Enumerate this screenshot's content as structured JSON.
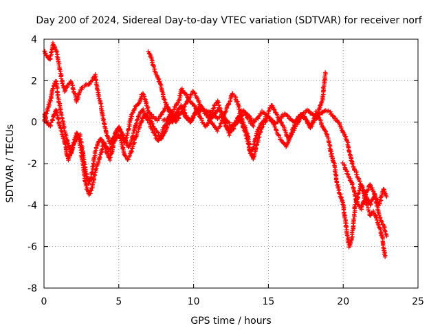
{
  "chart_data": {
    "type": "scatter",
    "title": "Day 200 of 2024, Sidereal Day-to-day VTEC variation (SDTVAR) for receiver norf",
    "xlabel": "GPS time / hours",
    "ylabel": "SDTVAR / TECUs",
    "xlim": [
      0,
      25
    ],
    "ylim": [
      -8,
      4
    ],
    "xticks": [
      0,
      5,
      10,
      15,
      20,
      25
    ],
    "yticks": [
      -8,
      -6,
      -4,
      -2,
      0,
      2,
      4
    ],
    "grid": true,
    "marker": "+",
    "series": [
      {
        "name": "trace-a",
        "color": "#ff0000",
        "x": [
          0.0,
          0.2,
          0.4,
          0.6,
          0.8,
          1.0,
          1.2,
          1.4,
          1.6,
          1.8,
          2.0,
          2.2,
          2.4,
          2.6,
          2.8,
          3.0,
          3.2,
          3.4,
          3.6,
          3.8,
          4.0,
          4.2,
          4.4,
          4.6,
          4.8,
          5.0,
          5.2,
          5.4,
          5.6,
          5.8,
          6.0,
          6.2,
          6.4,
          6.6,
          6.8,
          7.0,
          7.2,
          7.4,
          7.6,
          7.8,
          8.0,
          8.2,
          8.4,
          8.6,
          8.8,
          9.0,
          9.2,
          9.4,
          9.6,
          9.8,
          10.0,
          10.2,
          10.4,
          10.6,
          10.8,
          11.0,
          11.2,
          11.4,
          11.6,
          11.8,
          12.0,
          12.2,
          12.4,
          12.6,
          12.8,
          13.0,
          13.2,
          13.4,
          13.6,
          13.8,
          14.0
        ],
        "y": [
          3.5,
          3.2,
          3.0,
          3.8,
          3.5,
          2.8,
          2.0,
          1.5,
          1.8,
          2.0,
          1.5,
          1.0,
          1.5,
          1.7,
          1.8,
          1.8,
          2.0,
          2.3,
          1.5,
          0.8,
          0.0,
          -0.6,
          -1.0,
          -0.8,
          -0.5,
          -0.2,
          -0.6,
          -1.0,
          -0.5,
          0.2,
          0.6,
          0.8,
          1.0,
          1.4,
          1.0,
          0.5,
          0.3,
          0.2,
          0.1,
          0.3,
          0.5,
          0.8,
          0.4,
          0.2,
          0.0,
          0.2,
          0.5,
          0.8,
          1.0,
          1.3,
          1.5,
          1.2,
          0.9,
          0.6,
          0.5,
          0.3,
          0.2,
          0.4,
          0.6,
          0.5,
          0.2,
          -0.2,
          -0.4,
          -0.2,
          0.0,
          0.3,
          0.6,
          0.5,
          0.2,
          0.0,
          -0.2
        ]
      },
      {
        "name": "trace-b",
        "color": "#ff0000",
        "x": [
          0.0,
          0.2,
          0.4,
          0.6,
          0.8,
          1.0,
          1.2,
          1.4,
          1.6,
          1.8,
          2.0,
          2.2,
          2.4,
          2.6,
          2.8,
          3.0,
          3.2,
          3.4,
          3.6,
          3.8,
          4.0,
          4.2,
          4.4,
          4.6,
          4.8,
          5.0,
          5.2,
          5.4,
          5.6,
          5.8,
          6.0,
          6.2,
          6.4,
          6.6,
          6.8,
          7.0,
          7.2,
          7.4,
          7.6,
          7.8,
          8.0,
          8.2,
          8.4,
          8.6,
          8.8,
          9.0,
          9.2,
          9.4,
          9.6,
          9.8,
          10.0,
          10.2,
          10.4,
          10.6,
          10.8,
          11.0,
          11.2,
          11.4,
          11.6,
          11.8,
          12.0,
          12.2,
          12.4,
          12.6,
          12.8,
          13.0,
          13.2,
          13.4,
          13.6,
          13.8,
          14.0,
          14.2,
          14.4,
          14.6,
          14.8,
          15.0,
          15.2,
          15.4,
          15.6,
          15.8,
          16.0,
          16.2,
          16.4,
          16.6,
          16.8,
          17.0,
          17.2,
          17.4,
          17.6,
          17.8,
          18.0,
          18.2,
          18.4,
          18.6,
          18.8
        ],
        "y": [
          0.0,
          0.5,
          1.0,
          1.6,
          2.0,
          1.0,
          0.2,
          -0.5,
          -1.0,
          -1.5,
          -1.0,
          -0.5,
          -1.0,
          -2.0,
          -3.0,
          -3.5,
          -3.2,
          -2.5,
          -2.0,
          -1.5,
          -1.0,
          -1.2,
          -1.4,
          -1.0,
          -0.5,
          -0.3,
          -0.5,
          -0.8,
          -1.2,
          -1.0,
          -0.5,
          0.0,
          0.4,
          0.6,
          0.3,
          0.0,
          -0.3,
          -0.6,
          -0.9,
          -0.7,
          -0.3,
          0.0,
          0.3,
          0.5,
          0.8,
          1.0,
          1.6,
          1.4,
          1.2,
          1.0,
          0.8,
          0.6,
          0.5,
          0.6,
          0.4,
          0.2,
          0.0,
          -0.2,
          -0.4,
          -0.1,
          0.2,
          0.6,
          1.0,
          1.4,
          1.2,
          0.8,
          0.2,
          -0.2,
          -0.6,
          -1.5,
          -1.2,
          -0.6,
          -0.2,
          0.0,
          0.2,
          0.5,
          0.8,
          0.6,
          0.3,
          0.0,
          -0.2,
          -0.6,
          -0.8,
          -0.5,
          -0.2,
          0.0,
          0.2,
          0.3,
          0.0,
          -0.2,
          0.0,
          0.3,
          0.6,
          1.0,
          2.4
        ]
      },
      {
        "name": "trace-c",
        "color": "#ff0000",
        "x": [
          0.0,
          0.2,
          0.4,
          0.6,
          0.8,
          1.0,
          1.2,
          1.4,
          1.6,
          1.8,
          2.0,
          2.2,
          2.4,
          2.6,
          2.8,
          3.0,
          3.2,
          3.4,
          3.6,
          3.8,
          4.0,
          4.2,
          4.4,
          4.6,
          4.8,
          5.0,
          5.2,
          5.4,
          5.6,
          5.8,
          6.0,
          6.2,
          6.4,
          6.6,
          6.8,
          7.0,
          7.2,
          7.4,
          7.6,
          7.8,
          8.0,
          8.2,
          8.4,
          8.6,
          8.8,
          9.0,
          9.2,
          9.4,
          9.6,
          9.8,
          10.0,
          10.2,
          10.4,
          10.6,
          10.8,
          11.0,
          11.2,
          11.4,
          11.6,
          11.8,
          12.0,
          12.2,
          12.4,
          12.6,
          12.8,
          13.0,
          13.2,
          13.4,
          13.6,
          13.8,
          14.0,
          14.2,
          14.4,
          14.6,
          14.8,
          15.0,
          15.2,
          15.4,
          15.6,
          15.8,
          16.0,
          16.2,
          16.4,
          16.6,
          16.8,
          17.0,
          17.2,
          17.4,
          17.6,
          17.8,
          18.0,
          18.2,
          18.4,
          18.6,
          18.8,
          19.0,
          19.2,
          19.4,
          19.6,
          19.8,
          20.0,
          20.2,
          20.4,
          20.6,
          20.8,
          21.0,
          21.2,
          21.4,
          21.6,
          21.8,
          22.0,
          22.2,
          22.4,
          22.6,
          22.8
        ],
        "y": [
          0.5,
          0.0,
          -0.2,
          0.2,
          0.6,
          0.0,
          -0.5,
          -1.0,
          -1.8,
          -1.5,
          -1.0,
          -0.8,
          -0.6,
          -1.5,
          -2.5,
          -3.0,
          -2.5,
          -1.5,
          -1.0,
          -0.8,
          -1.0,
          -1.5,
          -1.8,
          -1.2,
          -0.8,
          -0.6,
          -1.0,
          -1.6,
          -1.8,
          -1.5,
          -1.0,
          -0.6,
          -0.2,
          0.2,
          0.4,
          0.2,
          0.0,
          -0.3,
          -0.5,
          -0.8,
          -0.6,
          -0.3,
          0.0,
          0.2,
          0.4,
          0.6,
          0.8,
          0.5,
          0.2,
          0.0,
          0.3,
          0.6,
          0.3,
          0.0,
          -0.2,
          0.0,
          0.4,
          0.8,
          1.0,
          0.6,
          0.2,
          -0.3,
          -0.6,
          -0.4,
          -0.1,
          0.2,
          0.0,
          -0.4,
          -0.8,
          -1.5,
          -1.8,
          -1.2,
          -0.6,
          -0.2,
          0.0,
          0.3,
          0.1,
          -0.2,
          -0.5,
          -0.8,
          -1.0,
          -1.2,
          -0.8,
          -0.4,
          0.0,
          0.2,
          0.4,
          0.2,
          0.0,
          -0.3,
          0.0,
          0.5,
          0.2,
          -0.2,
          -0.4,
          -0.8,
          -1.5,
          -2.0,
          -3.0,
          -3.5,
          -4.0,
          -5.0,
          -6.0,
          -5.5,
          -4.0,
          -3.5,
          -3.0,
          -3.5,
          -4.0,
          -4.5,
          -4.3,
          -4.6,
          -5.0,
          -5.5,
          -6.5
        ]
      },
      {
        "name": "trace-d",
        "color": "#ff0000",
        "x": [
          8.0,
          8.3,
          8.6,
          8.9,
          9.2,
          9.5,
          9.8,
          10.1,
          10.4,
          10.7,
          11.0,
          11.3,
          11.6,
          11.9,
          12.2,
          12.5,
          12.8,
          13.1,
          13.4,
          13.7,
          14.0,
          14.3,
          14.6,
          14.9,
          15.2,
          15.5,
          15.8,
          16.1,
          16.4,
          16.7,
          17.0,
          17.3,
          17.6,
          17.9,
          18.2,
          18.5,
          18.8,
          19.1,
          19.4,
          19.7,
          20.0,
          20.3,
          20.6,
          20.9,
          21.2,
          21.5,
          21.8,
          22.1,
          22.4,
          22.7,
          22.9
        ],
        "y": [
          0.1,
          0.2,
          0.0,
          0.3,
          0.5,
          0.2,
          0.0,
          0.4,
          0.8,
          0.6,
          0.5,
          0.4,
          0.2,
          0.3,
          0.1,
          -0.2,
          -0.1,
          0.2,
          0.5,
          0.3,
          0.0,
          0.2,
          0.5,
          0.3,
          0.1,
          -0.1,
          0.2,
          0.4,
          0.2,
          0.0,
          0.2,
          0.4,
          0.6,
          0.4,
          0.2,
          0.4,
          0.6,
          0.5,
          0.2,
          0.0,
          -0.5,
          -1.0,
          -2.0,
          -2.5,
          -3.0,
          -3.5,
          -4.0,
          -3.5,
          -4.5,
          -5.0,
          -5.5
        ]
      },
      {
        "name": "trace-e",
        "color": "#ff0000",
        "x": [
          7.0,
          7.2,
          7.4,
          7.6,
          7.8,
          8.0,
          8.2,
          8.4,
          8.6,
          8.8
        ],
        "y": [
          3.4,
          3.0,
          2.5,
          2.2,
          1.8,
          1.2,
          0.8,
          0.6,
          0.4,
          0.2
        ]
      },
      {
        "name": "trace-f",
        "color": "#ff0000",
        "x": [
          20.0,
          20.3,
          20.6,
          20.9,
          21.2,
          21.5,
          21.8,
          22.1,
          22.4,
          22.7,
          22.9
        ],
        "y": [
          -2.0,
          -2.5,
          -3.0,
          -3.8,
          -4.2,
          -3.5,
          -3.0,
          -3.5,
          -4.0,
          -3.2,
          -3.6
        ]
      }
    ]
  }
}
